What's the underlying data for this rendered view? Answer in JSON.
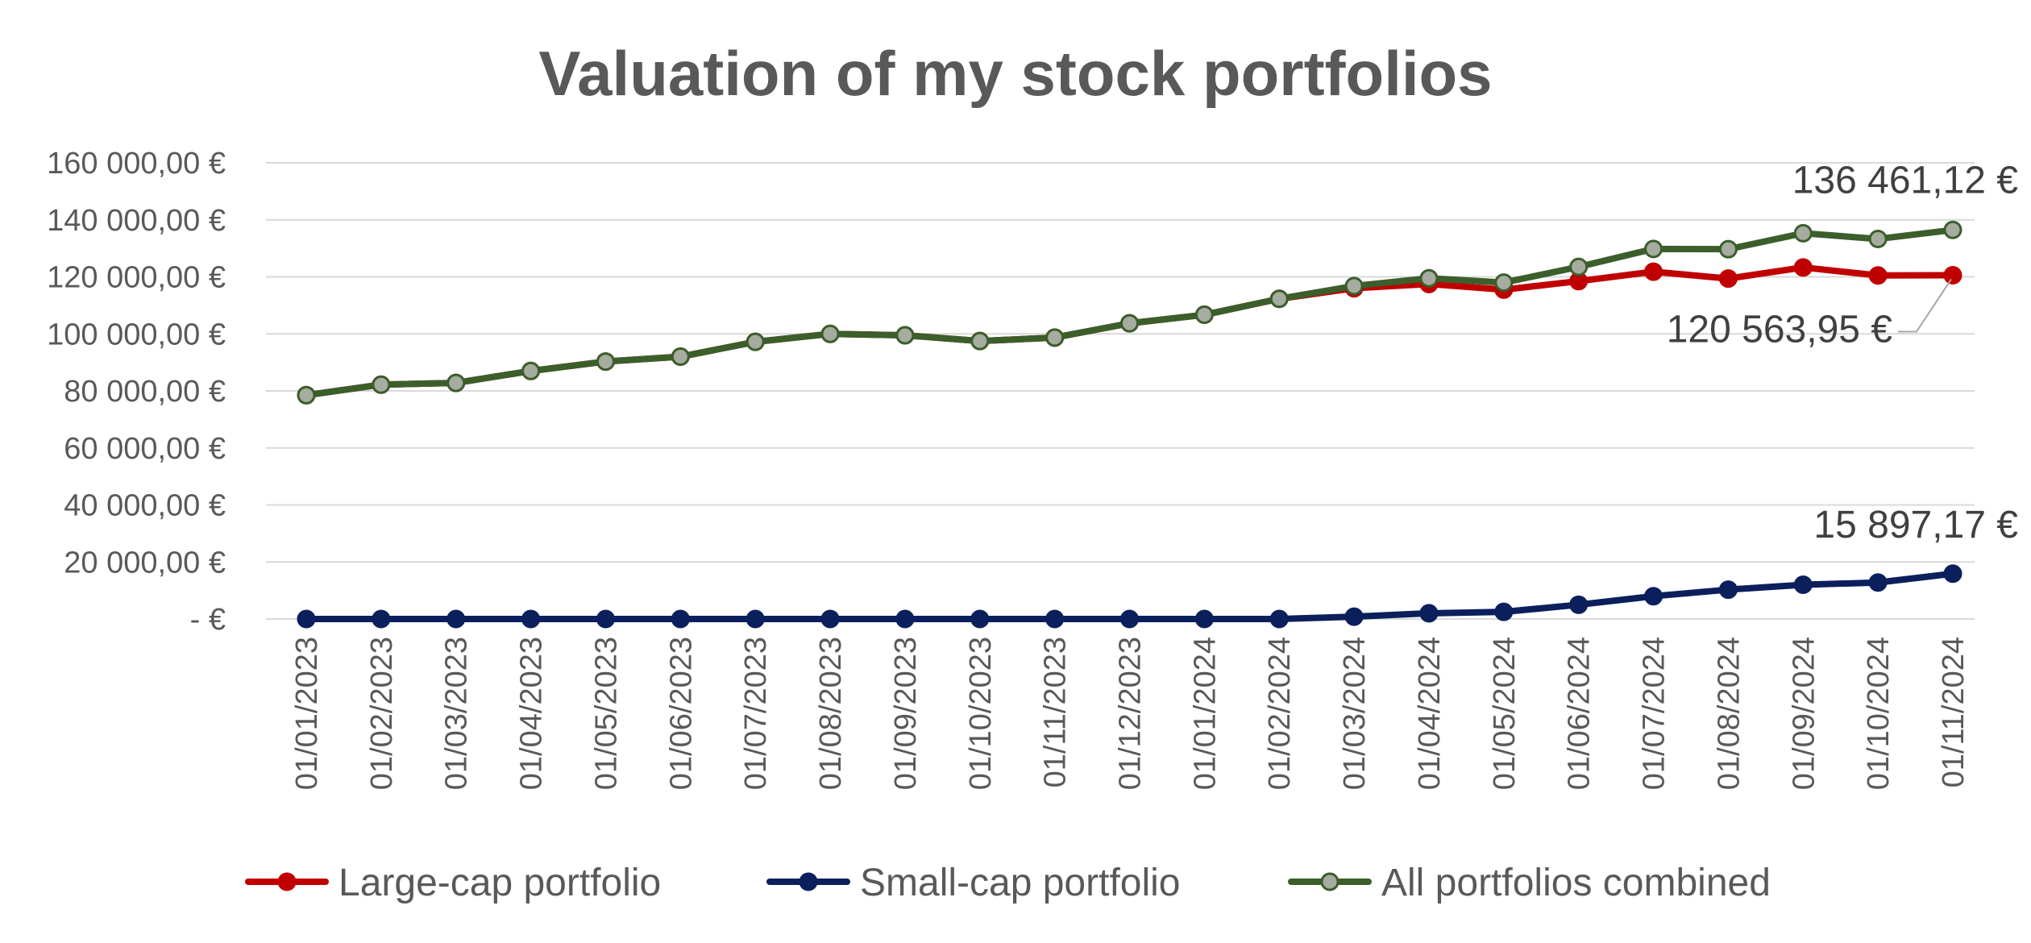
{
  "chart_data": {
    "type": "line",
    "title": "Valuation of my stock portfolios",
    "xlabel": "",
    "ylabel": "",
    "ylim": [
      0,
      160000
    ],
    "y_ticks": [
      {
        "value": 0,
        "label": "-  €"
      },
      {
        "value": 20000,
        "label": "20 000,00 €"
      },
      {
        "value": 40000,
        "label": "40 000,00 €"
      },
      {
        "value": 60000,
        "label": "60 000,00 €"
      },
      {
        "value": 80000,
        "label": "80 000,00 €"
      },
      {
        "value": 100000,
        "label": "100 000,00 €"
      },
      {
        "value": 120000,
        "label": "120 000,00 €"
      },
      {
        "value": 140000,
        "label": "140 000,00 €"
      },
      {
        "value": 160000,
        "label": "160 000,00 €"
      }
    ],
    "grid": true,
    "legend_position": "bottom",
    "categories": [
      "01/01/2023",
      "01/02/2023",
      "01/03/2023",
      "01/04/2023",
      "01/05/2023",
      "01/06/2023",
      "01/07/2023",
      "01/08/2023",
      "01/09/2023",
      "01/10/2023",
      "01/11/2023",
      "01/12/2023",
      "01/01/2024",
      "01/02/2024",
      "01/03/2024",
      "01/04/2024",
      "01/05/2024",
      "01/06/2024",
      "01/07/2024",
      "01/08/2024",
      "01/09/2024",
      "01/10/2024",
      "01/11/2024"
    ],
    "series": [
      {
        "name": "Large-cap portfolio",
        "color": "#c00000",
        "marker_fill": "#c00000",
        "marker_stroke": "#c00000",
        "values": [
          78500,
          82200,
          82800,
          87000,
          90300,
          92000,
          97200,
          100000,
          99500,
          97500,
          98700,
          103700,
          106700,
          112300,
          116000,
          117500,
          115500,
          118500,
          121800,
          119400,
          123300,
          120500,
          120564
        ]
      },
      {
        "name": "Small-cap portfolio",
        "color": "#0b1f5c",
        "marker_fill": "#0b1f5c",
        "marker_stroke": "#0b1f5c",
        "values": [
          0,
          0,
          0,
          0,
          0,
          0,
          0,
          0,
          0,
          0,
          0,
          0,
          0,
          0,
          800,
          2000,
          2500,
          5000,
          8000,
          10300,
          12000,
          12800,
          15897
        ]
      },
      {
        "name": "All portfolios combined",
        "color": "#3b5e2b",
        "marker_fill": "#a6aca0",
        "marker_stroke": "#3b5e2b",
        "values": [
          78500,
          82200,
          82800,
          87000,
          90300,
          92000,
          97200,
          100000,
          99500,
          97500,
          98700,
          103700,
          106700,
          112300,
          116800,
          119500,
          118000,
          123500,
          129800,
          129700,
          135300,
          133300,
          136461
        ]
      }
    ],
    "annotations": [
      {
        "series_index": 2,
        "point_index": 22,
        "text": "136 461,12 €"
      },
      {
        "series_index": 0,
        "point_index": 22,
        "text": "120 563,95 €"
      },
      {
        "series_index": 1,
        "point_index": 22,
        "text": "15 897,17 €"
      }
    ]
  }
}
